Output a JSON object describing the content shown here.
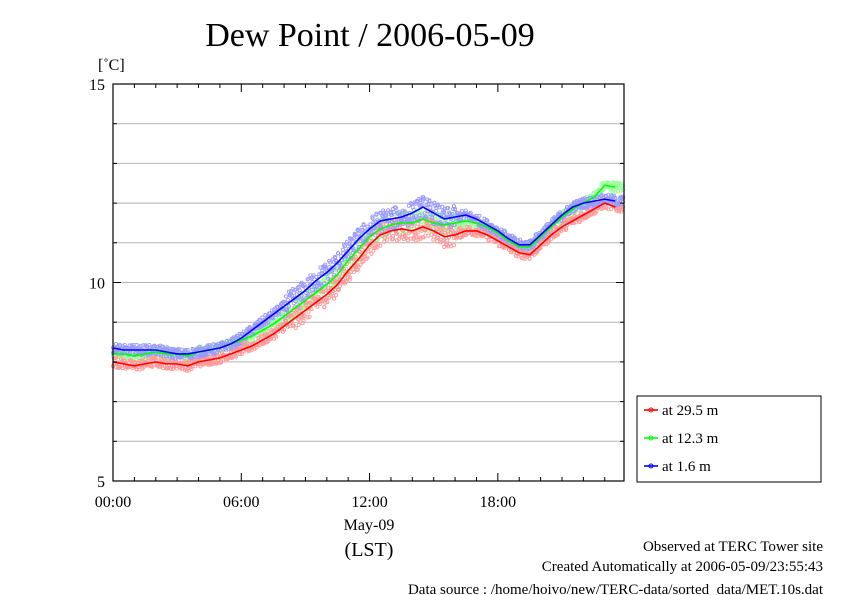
{
  "chart_data": {
    "type": "line",
    "title": "Dew Point / 2006-05-09",
    "ylabel": "[˚C]",
    "ylim": [
      5,
      15
    ],
    "yticks": [
      5,
      10,
      15
    ],
    "ytick_labels": [
      "5",
      "10",
      "15"
    ],
    "xlim": [
      0,
      23.9
    ],
    "xticks": [
      0,
      6,
      12,
      18
    ],
    "xtick_labels": [
      "00:00",
      "06:00",
      "12:00",
      "18:00"
    ],
    "xlabel_date": "May-09",
    "xlabel_unit": "(LST)",
    "grid": true,
    "legend_position": "bottom-right outside",
    "series": [
      {
        "name": "at 29.5 m",
        "color": "#ff0000",
        "x": [
          0,
          0.5,
          1,
          1.5,
          2,
          2.5,
          3,
          3.5,
          4,
          4.5,
          5,
          5.5,
          6,
          6.5,
          7,
          7.5,
          8,
          8.5,
          9,
          9.5,
          10,
          10.5,
          11,
          11.5,
          12,
          12.5,
          13,
          13.5,
          14,
          14.5,
          15,
          15.5,
          16,
          16.5,
          17,
          17.5,
          18,
          18.5,
          19,
          19.5,
          20,
          20.5,
          21,
          21.5,
          22,
          22.5,
          23,
          23.5
        ],
        "values": [
          8.0,
          7.95,
          7.9,
          7.95,
          8.0,
          7.95,
          7.95,
          7.9,
          8.0,
          8.05,
          8.1,
          8.2,
          8.3,
          8.4,
          8.55,
          8.7,
          8.9,
          9.1,
          9.3,
          9.5,
          9.7,
          9.95,
          10.3,
          10.6,
          10.95,
          11.2,
          11.3,
          11.35,
          11.3,
          11.4,
          11.3,
          11.15,
          11.2,
          11.3,
          11.3,
          11.2,
          11.05,
          10.9,
          10.75,
          10.7,
          10.95,
          11.2,
          11.4,
          11.55,
          11.7,
          11.85,
          12.0,
          11.9
        ]
      },
      {
        "name": "at 12.3 m",
        "color": "#00ff00",
        "x": [
          0,
          0.5,
          1,
          1.5,
          2,
          2.5,
          3,
          3.5,
          4,
          4.5,
          5,
          5.5,
          6,
          6.5,
          7,
          7.5,
          8,
          8.5,
          9,
          9.5,
          10,
          10.5,
          11,
          11.5,
          12,
          12.5,
          13,
          13.5,
          14,
          14.5,
          15,
          15.5,
          16,
          16.5,
          17,
          17.5,
          18,
          18.5,
          19,
          19.5,
          20,
          20.5,
          21,
          21.5,
          22,
          22.5,
          23,
          23.5
        ],
        "values": [
          8.2,
          8.2,
          8.15,
          8.2,
          8.25,
          8.2,
          8.2,
          8.15,
          8.25,
          8.3,
          8.35,
          8.45,
          8.55,
          8.65,
          8.8,
          8.95,
          9.15,
          9.35,
          9.55,
          9.75,
          9.95,
          10.2,
          10.55,
          10.85,
          11.15,
          11.35,
          11.45,
          11.5,
          11.5,
          11.6,
          11.5,
          11.45,
          11.5,
          11.55,
          11.5,
          11.4,
          11.25,
          11.05,
          10.9,
          10.9,
          11.15,
          11.4,
          11.65,
          11.85,
          12.0,
          12.15,
          12.45,
          12.4
        ]
      },
      {
        "name": "at 1.6 m",
        "color": "#0000ff",
        "x": [
          0,
          0.5,
          1,
          1.5,
          2,
          2.5,
          3,
          3.5,
          4,
          4.5,
          5,
          5.5,
          6,
          6.5,
          7,
          7.5,
          8,
          8.5,
          9,
          9.5,
          10,
          10.5,
          11,
          11.5,
          12,
          12.5,
          13,
          13.5,
          14,
          14.5,
          15,
          15.5,
          16,
          16.5,
          17,
          17.5,
          18,
          18.5,
          19,
          19.5,
          20,
          20.5,
          21,
          21.5,
          22,
          22.5,
          23,
          23.5
        ],
        "values": [
          8.35,
          8.3,
          8.3,
          8.3,
          8.3,
          8.25,
          8.2,
          8.2,
          8.25,
          8.3,
          8.35,
          8.45,
          8.6,
          8.8,
          9.0,
          9.2,
          9.4,
          9.6,
          9.8,
          10.05,
          10.25,
          10.5,
          10.8,
          11.1,
          11.35,
          11.55,
          11.6,
          11.65,
          11.75,
          11.9,
          11.75,
          11.6,
          11.65,
          11.7,
          11.6,
          11.45,
          11.3,
          11.1,
          10.95,
          10.95,
          11.2,
          11.45,
          11.7,
          11.9,
          12.0,
          12.05,
          12.1,
          12.05
        ]
      }
    ]
  },
  "footer": {
    "line1": "Observed at TERC Tower site",
    "line2": "Created Automatically at 2006-05-09/23:55:43",
    "line3": "Data source : /home/hoivo/new/TERC-data/sorted_data/MET.10s.dat"
  }
}
